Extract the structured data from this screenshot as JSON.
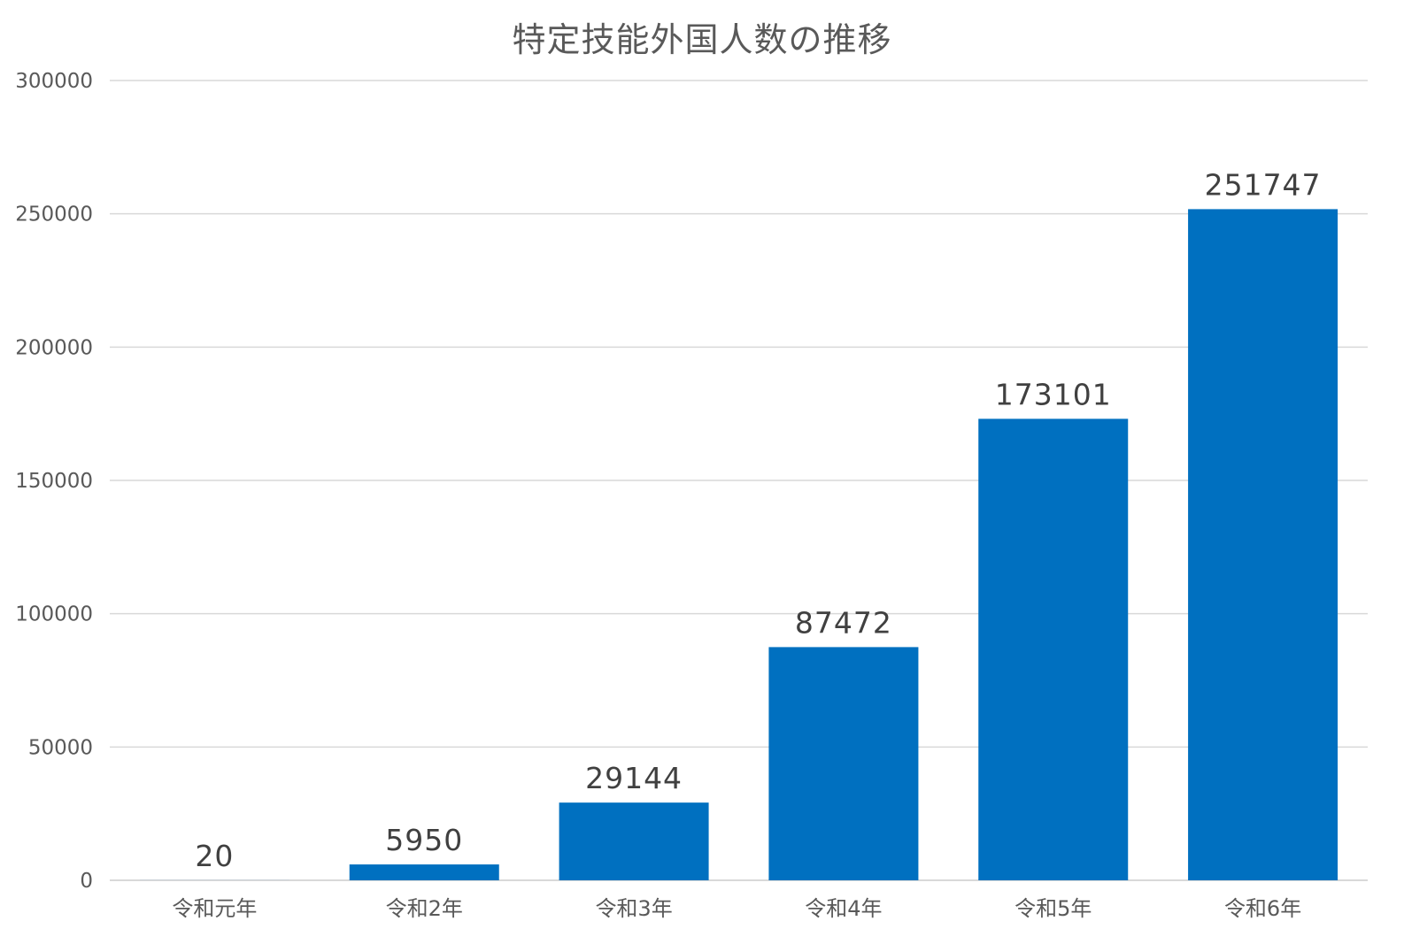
{
  "chart_data": {
    "type": "bar",
    "title": "特定技能外国人数の推移",
    "categories": [
      "令和元年",
      "令和2年",
      "令和3年",
      "令和4年",
      "令和5年",
      "令和6年"
    ],
    "values": [
      20,
      5950,
      29144,
      87472,
      173101,
      251747
    ],
    "data_labels": [
      "20",
      "5950",
      "29144",
      "87472",
      "173101",
      "251747"
    ],
    "ylim": [
      0,
      300000
    ],
    "y_ticks": [
      "0",
      "50000",
      "100000",
      "150000",
      "200000",
      "250000",
      "300000"
    ],
    "y_tick_values": [
      0,
      50000,
      100000,
      150000,
      200000,
      250000,
      300000
    ],
    "xlabel": "",
    "ylabel": "",
    "grid": true,
    "legend": "none",
    "bar_color": "#0070c0"
  }
}
